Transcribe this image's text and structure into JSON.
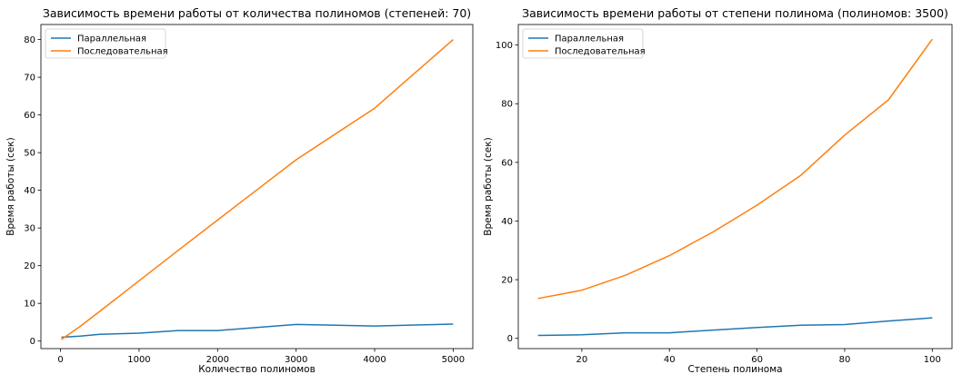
{
  "chart_data": [
    {
      "type": "line",
      "title": "Зависимость времени работы от количества полиномов (степеней: 70)",
      "xlabel": "Количество полиномов",
      "ylabel": "Время работы (сек)",
      "xlim": [
        -250,
        5250
      ],
      "ylim": [
        -2,
        84
      ],
      "xticks": [
        0,
        1000,
        2000,
        3000,
        4000,
        5000
      ],
      "yticks": [
        0,
        10,
        20,
        30,
        40,
        50,
        60,
        70,
        80
      ],
      "legend": "top-left",
      "grid": false,
      "series": [
        {
          "name": "Параллельная",
          "color": "#1f77b4",
          "x": [
            10,
            250,
            500,
            1000,
            1500,
            2000,
            2500,
            3000,
            4000,
            5000
          ],
          "y": [
            1.0,
            1.3,
            1.8,
            2.1,
            2.8,
            2.8,
            3.6,
            4.4,
            4.0,
            4.5
          ]
        },
        {
          "name": "Последовательная",
          "color": "#ff7f0e",
          "x": [
            10,
            250,
            500,
            1000,
            1500,
            2000,
            2500,
            3000,
            4000,
            5000
          ],
          "y": [
            0.4,
            3.9,
            7.9,
            16.0,
            24.1,
            32.1,
            40.1,
            48.1,
            61.8,
            80.0
          ]
        }
      ]
    },
    {
      "type": "line",
      "title": "Зависимость времени работы от степени полинома (полиномов: 3500)",
      "xlabel": "Степень полинома",
      "ylabel": "Время работы (сек)",
      "xlim": [
        5.5,
        104.5
      ],
      "ylim": [
        -3.5,
        107
      ],
      "xticks": [
        20,
        40,
        60,
        80,
        100
      ],
      "yticks": [
        0,
        20,
        40,
        60,
        80,
        100
      ],
      "legend": "top-left",
      "grid": false,
      "series": [
        {
          "name": "Параллельная",
          "color": "#1f77b4",
          "x": [
            10,
            20,
            30,
            40,
            50,
            60,
            70,
            80,
            90,
            100
          ],
          "y": [
            1.0,
            1.2,
            1.9,
            1.9,
            2.8,
            3.7,
            4.5,
            4.7,
            5.9,
            7.0
          ]
        },
        {
          "name": "Последовательная",
          "color": "#ff7f0e",
          "x": [
            10,
            20,
            30,
            40,
            50,
            60,
            70,
            80,
            90,
            100
          ],
          "y": [
            13.6,
            16.4,
            21.5,
            28.2,
            36.3,
            45.4,
            55.6,
            69.3,
            81.3,
            102.0
          ]
        }
      ]
    }
  ]
}
